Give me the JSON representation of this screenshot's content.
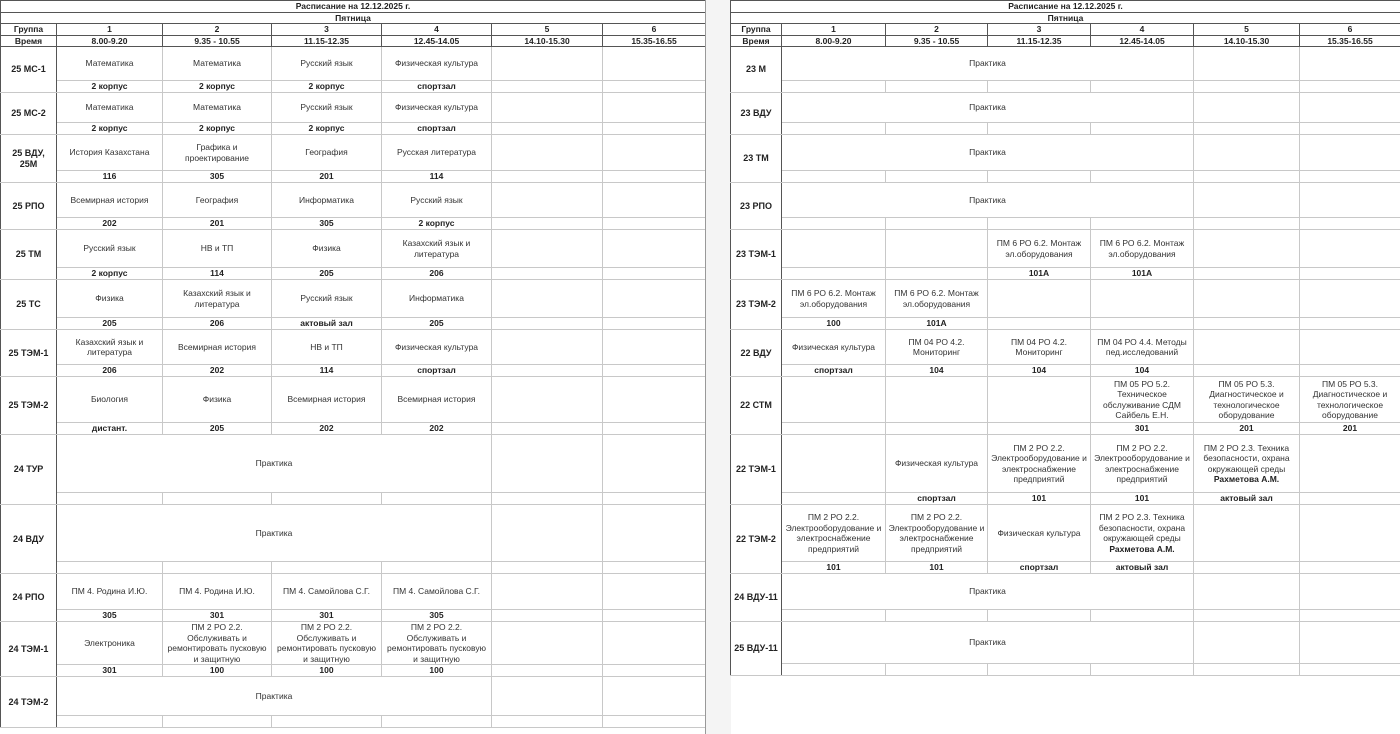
{
  "left": {
    "title": "Расписание на 12.12.2025 г.",
    "day": "Пятница",
    "group_label": "Группа",
    "time_label": "Время",
    "pairs": [
      "1",
      "2",
      "3",
      "4",
      "5",
      "6"
    ],
    "times": [
      "8.00-9.20",
      "9.35 - 10.55",
      "11.15-12.35",
      "12.45-14.05",
      "14.10-15.30",
      "15.35-16.55"
    ],
    "rows": [
      {
        "group": "25 МС-1",
        "cells": [
          {
            "s": "Математика",
            "r": "2 корпус"
          },
          {
            "s": "Математика",
            "r": "2 корпус"
          },
          {
            "s": "Русский язык",
            "r": "2 корпус"
          },
          {
            "s": "Физическая культура",
            "r": "спортзал"
          },
          {
            "s": "",
            "r": ""
          },
          {
            "s": "",
            "r": ""
          }
        ]
      },
      {
        "group": "25 МС-2",
        "cells": [
          {
            "s": "Математика",
            "r": "2 корпус"
          },
          {
            "s": "Математика",
            "r": "2 корпус"
          },
          {
            "s": "Русский язык",
            "r": "2 корпус"
          },
          {
            "s": "Физическая культура",
            "r": "спортзал"
          },
          {
            "s": "",
            "r": ""
          },
          {
            "s": "",
            "r": ""
          }
        ]
      },
      {
        "group": "25 ВДУ, 25М",
        "cells": [
          {
            "s": "История Казахстана",
            "r": "116"
          },
          {
            "s": "Графика и проектирование",
            "r": "305"
          },
          {
            "s": "География",
            "r": "201"
          },
          {
            "s": "Русская литература",
            "r": "114"
          },
          {
            "s": "",
            "r": ""
          },
          {
            "s": "",
            "r": ""
          }
        ]
      },
      {
        "group": "25 РПО",
        "cells": [
          {
            "s": "Всемирная история",
            "r": "202"
          },
          {
            "s": "География",
            "r": "201"
          },
          {
            "s": "Информатика",
            "r": "305"
          },
          {
            "s": "Русский язык",
            "r": "2 корпус"
          },
          {
            "s": "",
            "r": ""
          },
          {
            "s": "",
            "r": ""
          }
        ]
      },
      {
        "group": "25 ТМ",
        "cells": [
          {
            "s": "Русский язык",
            "r": "2 корпус"
          },
          {
            "s": "НВ и ТП",
            "r": "114"
          },
          {
            "s": "Физика",
            "r": "205"
          },
          {
            "s": "Казахский язык и литература",
            "r": "206"
          },
          {
            "s": "",
            "r": ""
          },
          {
            "s": "",
            "r": ""
          }
        ]
      },
      {
        "group": "25 ТС",
        "cells": [
          {
            "s": "Физика",
            "r": "205"
          },
          {
            "s": "Казахский язык и литература",
            "r": "206"
          },
          {
            "s": "Русский язык",
            "r": "актовый зал"
          },
          {
            "s": "Информатика",
            "r": "205"
          },
          {
            "s": "",
            "r": ""
          },
          {
            "s": "",
            "r": ""
          }
        ]
      },
      {
        "group": "25 ТЭМ-1",
        "cells": [
          {
            "s": "Казахский язык и литература",
            "r": "206"
          },
          {
            "s": "Всемирная история",
            "r": "202"
          },
          {
            "s": "НВ и ТП",
            "r": "114"
          },
          {
            "s": "Физическая культура",
            "r": "спортзал"
          },
          {
            "s": "",
            "r": ""
          },
          {
            "s": "",
            "r": ""
          }
        ]
      },
      {
        "group": "25 ТЭМ-2",
        "cells": [
          {
            "s": "Биология",
            "r": "дистант."
          },
          {
            "s": "Физика",
            "r": "205"
          },
          {
            "s": "Всемирная история",
            "r": "202"
          },
          {
            "s": "Всемирная история",
            "r": "202"
          },
          {
            "s": "",
            "r": ""
          },
          {
            "s": "",
            "r": ""
          }
        ]
      },
      {
        "group": "24 ТУР",
        "practice": "Практика"
      },
      {
        "group": "24 ВДУ",
        "practice": "Практика"
      },
      {
        "group": "24 РПО",
        "cells": [
          {
            "s": "ПМ 4. Родина И.Ю.",
            "r": "305"
          },
          {
            "s": "ПМ 4. Родина И.Ю.",
            "r": "301"
          },
          {
            "s": "ПМ 4. Самойлова С.Г.",
            "r": "301"
          },
          {
            "s": "ПМ 4. Самойлова С.Г.",
            "r": "305"
          },
          {
            "s": "",
            "r": ""
          },
          {
            "s": "",
            "r": ""
          }
        ]
      },
      {
        "group": "24 ТЭМ-1",
        "cells": [
          {
            "s": "Электроника",
            "r": "301"
          },
          {
            "s": "ПМ 2 РО 2.2. Обслуживать и ремонтировать пусковую и защитную",
            "r": "100"
          },
          {
            "s": "ПМ 2 РО 2.2. Обслуживать и ремонтировать пусковую и защитную",
            "r": "100"
          },
          {
            "s": "ПМ 2 РО 2.2. Обслуживать и ремонтировать пусковую и защитную",
            "r": "100"
          },
          {
            "s": "",
            "r": ""
          },
          {
            "s": "",
            "r": ""
          }
        ]
      },
      {
        "group": "24 ТЭМ-2",
        "practice": "Практика"
      }
    ]
  },
  "right": {
    "title": "Расписание на 12.12.2025 г.",
    "day": "Пятница",
    "group_label": "Группа",
    "time_label": "Время",
    "pairs": [
      "1",
      "2",
      "3",
      "4",
      "5",
      "6"
    ],
    "times": [
      "8.00-9.20",
      "9.35 - 10.55",
      "11.15-12.35",
      "12.45-14.05",
      "14.10-15.30",
      "15.35-16.55"
    ],
    "rows": [
      {
        "group": "23 М",
        "practice": "Практика"
      },
      {
        "group": "23 ВДУ",
        "practice": "Практика"
      },
      {
        "group": "23 ТМ",
        "practice": "Практика"
      },
      {
        "group": "23 РПО",
        "practice": "Практика"
      },
      {
        "group": "23 ТЭМ-1",
        "cells": [
          {
            "s": "",
            "r": ""
          },
          {
            "s": "",
            "r": ""
          },
          {
            "s": "ПМ 6 РО 6.2. Монтаж эл.оборудования",
            "r": "101А"
          },
          {
            "s": "ПМ 6 РО 6.2. Монтаж эл.оборудования",
            "r": "101А"
          },
          {
            "s": "",
            "r": ""
          },
          {
            "s": "",
            "r": ""
          }
        ]
      },
      {
        "group": "23 ТЭМ-2",
        "cells": [
          {
            "s": "ПМ 6 РО 6.2. Монтаж эл.оборудования",
            "r": "100"
          },
          {
            "s": "ПМ 6 РО 6.2. Монтаж эл.оборудования",
            "r": "101А"
          },
          {
            "s": "",
            "r": ""
          },
          {
            "s": "",
            "r": ""
          },
          {
            "s": "",
            "r": ""
          },
          {
            "s": "",
            "r": ""
          }
        ]
      },
      {
        "group": "22 ВДУ",
        "cells": [
          {
            "s": "Физическая культура",
            "r": "спортзал"
          },
          {
            "s": "ПМ 04 РО 4.2. Мониторинг",
            "r": "104"
          },
          {
            "s": "ПМ 04 РО 4.2. Мониторинг",
            "r": "104"
          },
          {
            "s": "ПМ 04 РО 4.4. Методы пед.исследований",
            "r": "104"
          },
          {
            "s": "",
            "r": ""
          },
          {
            "s": "",
            "r": ""
          }
        ]
      },
      {
        "group": "22 СТМ",
        "cells": [
          {
            "s": "",
            "r": ""
          },
          {
            "s": "",
            "r": ""
          },
          {
            "s": "",
            "r": ""
          },
          {
            "s": "ПМ 05 РО 5.2. Техническое обслуживание СДМ Сайбель Е.Н.",
            "r": "301"
          },
          {
            "s": "ПМ 05 РО 5.3. Диагностическое и технологическое оборудование",
            "r": "201"
          },
          {
            "s": "ПМ 05 РО 5.3. Диагностическое и технологическое оборудование",
            "r": "201"
          }
        ]
      },
      {
        "group": "22 ТЭМ-1",
        "cells": [
          {
            "s": "",
            "r": ""
          },
          {
            "s": "Физическая культура",
            "r": "спортзал"
          },
          {
            "s": "ПМ 2 РО 2.2. Электрооборудование и электроснабжение предприятий",
            "r": "101"
          },
          {
            "s": "ПМ 2 РО 2.2. Электрооборудование и электроснабжение предприятий",
            "r": "101"
          },
          {
            "s": "ПМ 2 РО 2.3. Техника безопасности, охрана окружающей среды",
            "t": "Рахметова А.М.",
            "r": "актовый зал"
          },
          {
            "s": "",
            "r": ""
          }
        ]
      },
      {
        "group": "22 ТЭМ-2",
        "cells": [
          {
            "s": "ПМ 2 РО 2.2. Электрооборудование и электроснабжение предприятий",
            "r": "101"
          },
          {
            "s": "ПМ 2 РО 2.2. Электрооборудование и электроснабжение предприятий",
            "r": "101"
          },
          {
            "s": "Физическая культура",
            "r": "спортзал"
          },
          {
            "s": "ПМ 2 РО 2.3. Техника безопасности, охрана окружающей среды",
            "t": "Рахметова А.М.",
            "r": "актовый зал"
          },
          {
            "s": "",
            "r": ""
          },
          {
            "s": "",
            "r": ""
          }
        ]
      },
      {
        "group": "24 ВДУ-11",
        "practice": "Практика"
      },
      {
        "group": "25 ВДУ-11",
        "practice": "Практика"
      }
    ]
  }
}
